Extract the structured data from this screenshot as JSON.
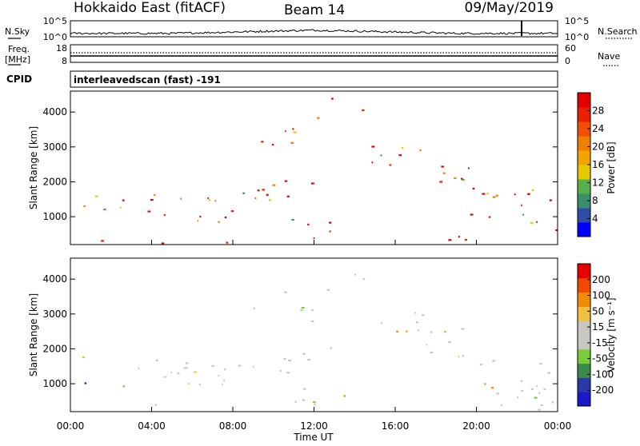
{
  "header": {
    "station": "Hokkaido East (fitACF)",
    "beam": "Beam 14",
    "date": "09/May/2019"
  },
  "noise_panel": {
    "left_label": "N.Sky",
    "right_label": "N.Search",
    "left_ticks": [
      "10^5",
      "10^0"
    ],
    "right_ticks": [
      "10^5",
      "10^0"
    ]
  },
  "freq_panel": {
    "left_label_1": "Freq.",
    "left_label_2": "[MHz]",
    "left_ticks": [
      "18",
      "8"
    ],
    "right_label": "Nave",
    "right_ticks": [
      "60",
      "0"
    ]
  },
  "cpid_panel": {
    "label": "CPID",
    "text": "interleavedscan (fast) -191"
  },
  "colors": {
    "power": [
      "#0000ff",
      "#2e4ca8",
      "#3c8c6e",
      "#55b04c",
      "#e8c800",
      "#f0a500",
      "#f08000",
      "#f05000",
      "#e82000",
      "#e00000"
    ],
    "velocity": [
      "#1a1acc",
      "#2a3aa8",
      "#3a8a4a",
      "#7acc3a",
      "#c8c8c0",
      "#c8c8c0",
      "#f0c040",
      "#f08c00",
      "#f04a00",
      "#e80000"
    ],
    "ground_scatter": "#c8c8c0"
  },
  "chart_data": [
    {
      "type": "heatmap",
      "name": "power",
      "ylabel": "Slant Range [km]",
      "yticks": [
        1000,
        2000,
        3000,
        4000
      ],
      "ylim": [
        200,
        4600
      ],
      "xlim_hours": [
        0,
        24
      ],
      "colorbar": {
        "label": "Power [dB]",
        "ticks": [
          "4",
          "8",
          "12",
          "16",
          "20",
          "24",
          "28"
        ],
        "range": [
          0,
          30
        ]
      }
    },
    {
      "type": "heatmap",
      "name": "velocity",
      "ylabel": "Slant Range [km]",
      "yticks": [
        1000,
        2000,
        3000,
        4000
      ],
      "ylim": [
        200,
        4600
      ],
      "xlim_hours": [
        0,
        24
      ],
      "xticks": [
        "00:00",
        "04:00",
        "08:00",
        "12:00",
        "16:00",
        "20:00",
        "00:00"
      ],
      "xlabel": "Time UT",
      "colorbar": {
        "label": "Velocity [m s⁻¹]",
        "ticks": [
          "200",
          "100",
          "50",
          "15",
          "-15",
          "-50",
          "-100",
          "-200"
        ],
        "range": [
          -250,
          250
        ]
      }
    }
  ]
}
